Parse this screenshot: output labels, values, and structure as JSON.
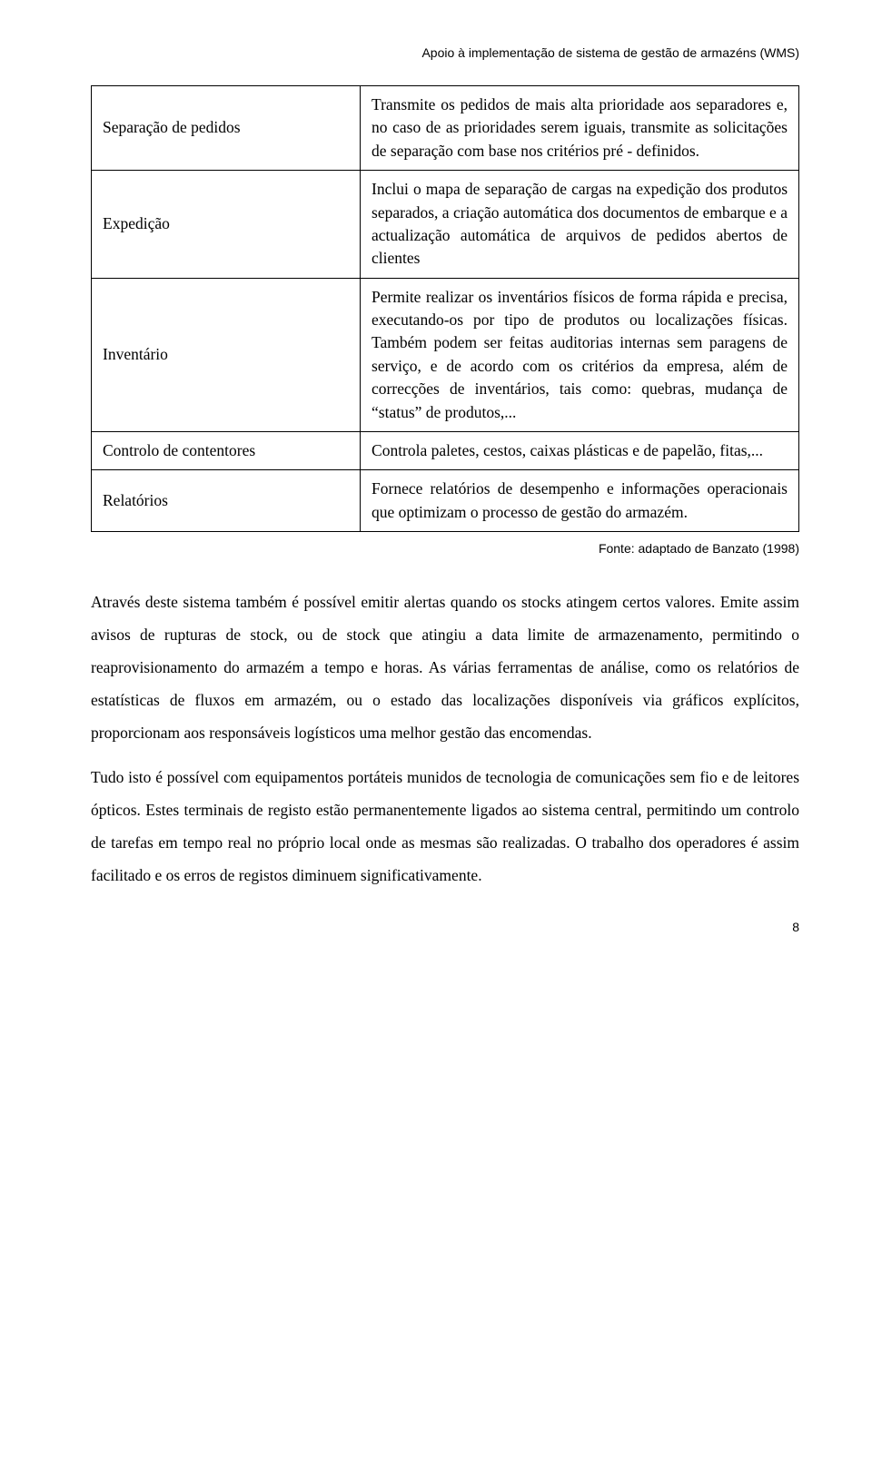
{
  "header": {
    "title": "Apoio à implementação de sistema de gestão de armazéns (WMS)"
  },
  "table": {
    "rows": [
      {
        "label": "Separação de pedidos",
        "desc": "Transmite os pedidos de mais alta prioridade aos separadores e, no caso de as prioridades serem iguais, transmite as solicitações de separação com base nos critérios pré - definidos."
      },
      {
        "label": "Expedição",
        "desc": "Inclui o mapa de separação de cargas na expedição dos produtos separados, a criação automática dos documentos de embarque e a actualização automática de arquivos de pedidos abertos de clientes"
      },
      {
        "label": "Inventário",
        "desc": "Permite realizar os inventários físicos de forma rápida e precisa, executando-os por tipo de produtos ou localizações físicas. Também podem ser feitas auditorias internas sem paragens de serviço, e de acordo com os critérios da empresa, além de correcções de inventários, tais como: quebras, mudança de “status” de produtos,..."
      },
      {
        "label": "Controlo de contentores",
        "desc": "Controla paletes, cestos, caixas plásticas e de papelão, fitas,..."
      },
      {
        "label": "Relatórios",
        "desc": "Fornece relatórios de desempenho e informações operacionais que optimizam o processo de gestão do armazém."
      }
    ]
  },
  "source": "Fonte: adaptado de Banzato (1998)",
  "paragraphs": {
    "p1": "Através deste sistema também é possível emitir alertas quando os stocks atingem certos valores. Emite assim avisos de rupturas de stock, ou de stock que atingiu a data limite de armazenamento, permitindo o reaprovisionamento do armazém a tempo e horas. As várias ferramentas de análise, como os relatórios de estatísticas de fluxos em armazém, ou o estado das localizações disponíveis via gráficos explícitos, proporcionam aos responsáveis logísticos uma melhor gestão das encomendas.",
    "p2": "Tudo isto é possível com equipamentos portáteis munidos de tecnologia de comunicações sem fio e de leitores ópticos. Estes terminais de registo estão permanentemente ligados ao sistema central, permitindo um controlo de tarefas em tempo real no próprio local onde as mesmas são realizadas. O trabalho dos operadores é assim facilitado e os erros de registos diminuem significativamente."
  },
  "pageNumber": "8"
}
